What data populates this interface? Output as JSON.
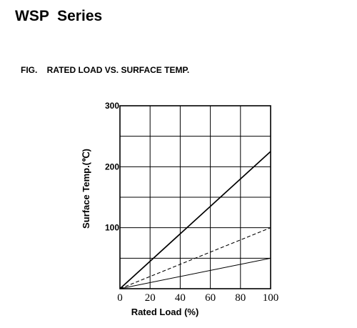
{
  "page": {
    "title": "WSP  Series",
    "figure_label": "FIG.    RATED LOAD VS. SURFACE TEMP."
  },
  "chart_data": {
    "type": "line",
    "title": "RATED LOAD VS. SURFACE TEMP.",
    "xlabel": "Rated Load (%)",
    "ylabel": "Surface Temp.(℃)",
    "xlim": [
      0,
      100
    ],
    "ylim": [
      0,
      300
    ],
    "x_ticks": [
      "0",
      "20",
      "40",
      "60",
      "80",
      "100"
    ],
    "y_ticks": [
      "100",
      "200",
      "300"
    ],
    "grid": true,
    "series": [
      {
        "style": "solid-thick",
        "x": [
          0,
          100
        ],
        "y": [
          0,
          225
        ]
      },
      {
        "style": "dashed",
        "x": [
          0,
          100
        ],
        "y": [
          0,
          100
        ]
      },
      {
        "style": "solid-thin",
        "x": [
          0,
          100
        ],
        "y": [
          0,
          50
        ]
      }
    ]
  }
}
